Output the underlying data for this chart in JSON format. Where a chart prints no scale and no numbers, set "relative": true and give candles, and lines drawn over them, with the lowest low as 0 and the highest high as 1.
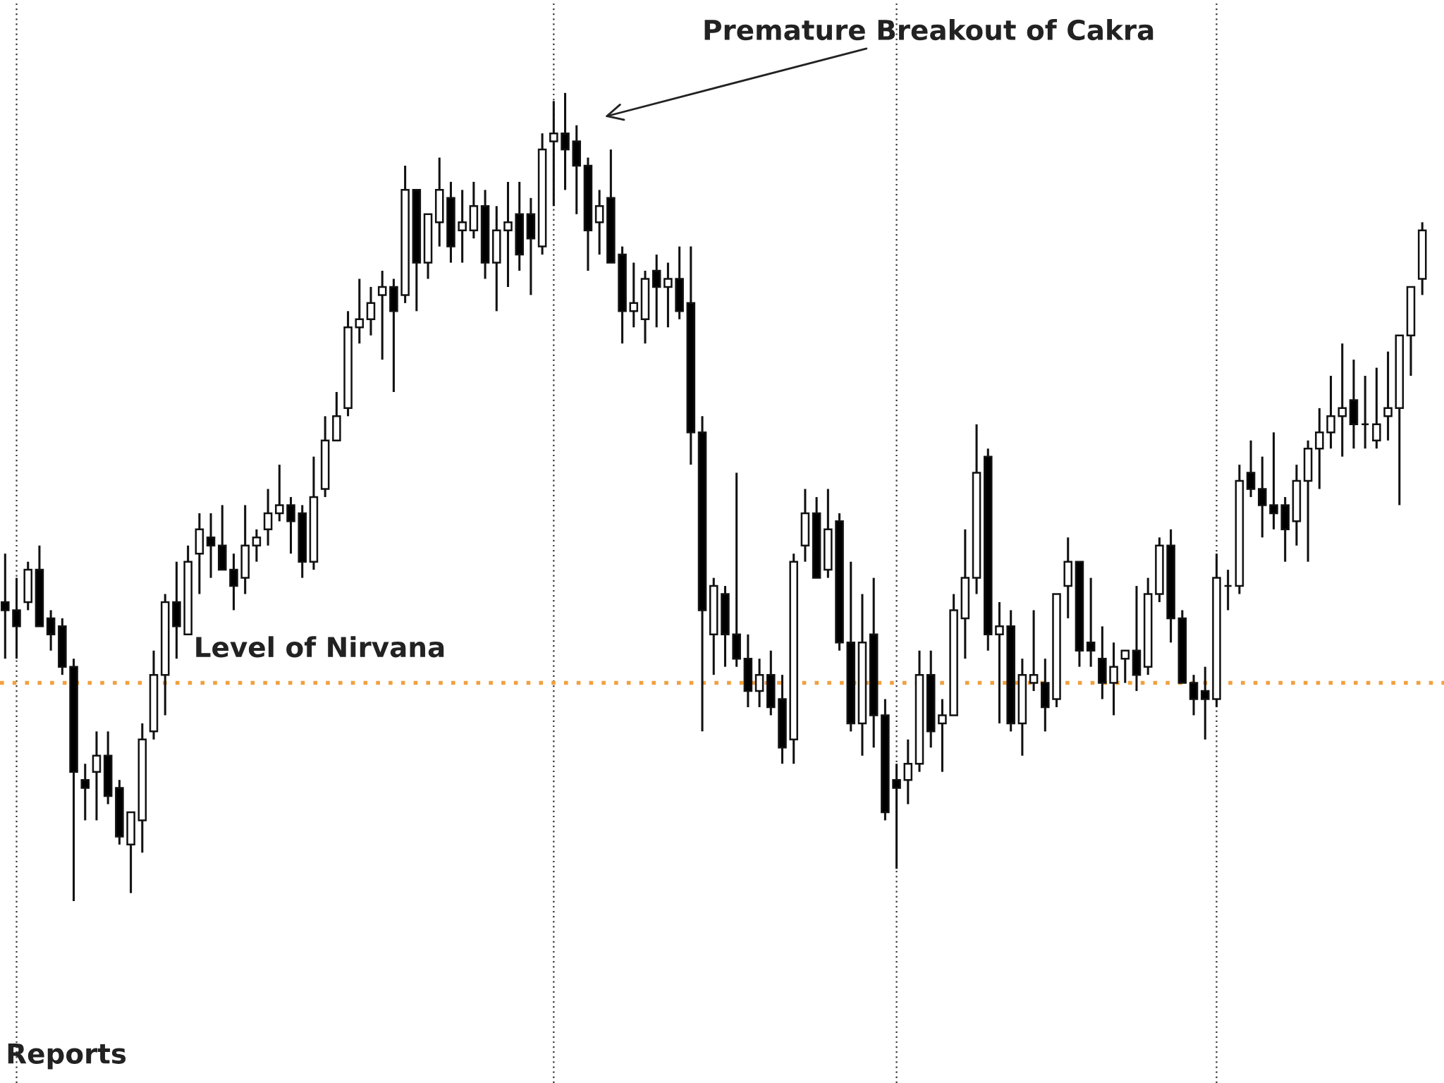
{
  "chart_data": {
    "type": "candlestick",
    "relative": true,
    "categories": [
      null,
      null,
      null,
      null,
      null,
      null,
      null,
      null,
      null,
      null,
      null,
      null,
      null,
      null,
      null,
      null,
      null,
      null,
      null,
      null,
      null,
      null,
      null,
      null,
      null,
      null,
      null,
      null,
      null,
      null,
      null,
      null,
      null,
      null,
      null,
      null,
      null,
      null,
      null,
      null,
      null,
      null,
      null,
      null,
      null,
      null,
      null,
      null,
      null,
      null,
      null,
      null,
      null,
      null,
      null,
      null,
      null,
      null,
      null,
      null,
      null,
      null,
      null,
      null,
      null,
      null,
      null,
      null,
      null,
      null,
      null,
      null,
      null,
      null,
      null,
      null,
      null,
      null,
      null,
      null,
      null,
      null,
      null,
      null,
      null,
      null,
      null,
      null,
      null,
      null,
      null,
      null,
      null,
      null,
      null,
      null,
      null,
      null,
      null,
      null,
      null,
      null,
      null,
      null,
      null,
      null,
      null,
      null,
      null,
      null,
      null,
      null,
      null,
      null,
      null,
      null,
      null,
      null,
      null,
      null,
      null,
      null,
      null,
      null,
      null
    ],
    "ohlc": [
      [
        0.37,
        0.43,
        0.3,
        0.36
      ],
      [
        0.36,
        0.4,
        0.3,
        0.34
      ],
      [
        0.37,
        0.42,
        0.36,
        0.41
      ],
      [
        0.41,
        0.44,
        0.34,
        0.34
      ],
      [
        0.35,
        0.36,
        0.31,
        0.33
      ],
      [
        0.34,
        0.35,
        0.28,
        0.29
      ],
      [
        0.29,
        0.3,
        0.0,
        0.16
      ],
      [
        0.15,
        0.17,
        0.1,
        0.14
      ],
      [
        0.16,
        0.21,
        0.1,
        0.18
      ],
      [
        0.18,
        0.21,
        0.12,
        0.13
      ],
      [
        0.14,
        0.15,
        0.07,
        0.08
      ],
      [
        0.07,
        0.11,
        0.01,
        0.11
      ],
      [
        0.1,
        0.22,
        0.06,
        0.2
      ],
      [
        0.21,
        0.31,
        0.2,
        0.28
      ],
      [
        0.28,
        0.38,
        0.23,
        0.37
      ],
      [
        0.37,
        0.42,
        0.3,
        0.34
      ],
      [
        0.33,
        0.44,
        0.33,
        0.42
      ],
      [
        0.43,
        0.48,
        0.38,
        0.46
      ],
      [
        0.45,
        0.48,
        0.4,
        0.44
      ],
      [
        0.44,
        0.49,
        0.41,
        0.41
      ],
      [
        0.41,
        0.43,
        0.36,
        0.39
      ],
      [
        0.4,
        0.49,
        0.38,
        0.44
      ],
      [
        0.44,
        0.46,
        0.42,
        0.45
      ],
      [
        0.46,
        0.51,
        0.44,
        0.48
      ],
      [
        0.48,
        0.54,
        0.47,
        0.49
      ],
      [
        0.49,
        0.5,
        0.43,
        0.47
      ],
      [
        0.48,
        0.49,
        0.4,
        0.42
      ],
      [
        0.42,
        0.55,
        0.41,
        0.5
      ],
      [
        0.51,
        0.6,
        0.5,
        0.57
      ],
      [
        0.57,
        0.63,
        0.57,
        0.6
      ],
      [
        0.61,
        0.73,
        0.6,
        0.71
      ],
      [
        0.71,
        0.77,
        0.69,
        0.72
      ],
      [
        0.72,
        0.76,
        0.7,
        0.74
      ],
      [
        0.75,
        0.78,
        0.67,
        0.76
      ],
      [
        0.76,
        0.77,
        0.63,
        0.73
      ],
      [
        0.75,
        0.91,
        0.74,
        0.88
      ],
      [
        0.88,
        0.88,
        0.73,
        0.79
      ],
      [
        0.79,
        0.85,
        0.77,
        0.85
      ],
      [
        0.84,
        0.92,
        0.81,
        0.88
      ],
      [
        0.87,
        0.89,
        0.79,
        0.81
      ],
      [
        0.83,
        0.88,
        0.79,
        0.84
      ],
      [
        0.83,
        0.89,
        0.82,
        0.86
      ],
      [
        0.86,
        0.88,
        0.77,
        0.79
      ],
      [
        0.79,
        0.86,
        0.73,
        0.83
      ],
      [
        0.83,
        0.89,
        0.76,
        0.84
      ],
      [
        0.85,
        0.89,
        0.78,
        0.8
      ],
      [
        0.85,
        0.87,
        0.75,
        0.82
      ],
      [
        0.81,
        0.95,
        0.8,
        0.93
      ],
      [
        0.94,
        0.99,
        0.86,
        0.95
      ],
      [
        0.95,
        1.0,
        0.88,
        0.93
      ],
      [
        0.94,
        0.96,
        0.85,
        0.91
      ],
      [
        0.91,
        0.92,
        0.78,
        0.83
      ],
      [
        0.84,
        0.88,
        0.8,
        0.86
      ],
      [
        0.87,
        0.93,
        0.79,
        0.79
      ],
      [
        0.8,
        0.81,
        0.69,
        0.73
      ],
      [
        0.73,
        0.79,
        0.71,
        0.74
      ],
      [
        0.72,
        0.78,
        0.69,
        0.77
      ],
      [
        0.78,
        0.8,
        0.71,
        0.76
      ],
      [
        0.76,
        0.79,
        0.71,
        0.77
      ],
      [
        0.77,
        0.81,
        0.72,
        0.73
      ],
      [
        0.74,
        0.81,
        0.54,
        0.58
      ],
      [
        0.58,
        0.6,
        0.21,
        0.36
      ],
      [
        0.33,
        0.4,
        0.28,
        0.39
      ],
      [
        0.38,
        0.39,
        0.29,
        0.33
      ],
      [
        0.33,
        0.53,
        0.29,
        0.3
      ],
      [
        0.3,
        0.33,
        0.24,
        0.26
      ],
      [
        0.26,
        0.3,
        0.24,
        0.28
      ],
      [
        0.28,
        0.31,
        0.23,
        0.24
      ],
      [
        0.25,
        0.28,
        0.17,
        0.19
      ],
      [
        0.2,
        0.43,
        0.17,
        0.42
      ],
      [
        0.44,
        0.51,
        0.42,
        0.48
      ],
      [
        0.48,
        0.5,
        0.4,
        0.4
      ],
      [
        0.41,
        0.51,
        0.4,
        0.46
      ],
      [
        0.47,
        0.48,
        0.31,
        0.32
      ],
      [
        0.32,
        0.42,
        0.21,
        0.22
      ],
      [
        0.22,
        0.38,
        0.18,
        0.32
      ],
      [
        0.33,
        0.4,
        0.19,
        0.23
      ],
      [
        0.23,
        0.25,
        0.1,
        0.11
      ],
      [
        0.15,
        0.17,
        0.04,
        0.14
      ],
      [
        0.15,
        0.2,
        0.12,
        0.17
      ],
      [
        0.17,
        0.31,
        0.16,
        0.28
      ],
      [
        0.28,
        0.31,
        0.19,
        0.21
      ],
      [
        0.22,
        0.25,
        0.16,
        0.23
      ],
      [
        0.23,
        0.38,
        0.23,
        0.36
      ],
      [
        0.35,
        0.46,
        0.3,
        0.4
      ],
      [
        0.4,
        0.59,
        0.38,
        0.53
      ],
      [
        0.55,
        0.56,
        0.31,
        0.33
      ],
      [
        0.33,
        0.37,
        0.22,
        0.34
      ],
      [
        0.34,
        0.36,
        0.21,
        0.22
      ],
      [
        0.22,
        0.3,
        0.18,
        0.28
      ],
      [
        0.27,
        0.36,
        0.26,
        0.28
      ],
      [
        0.27,
        0.3,
        0.21,
        0.24
      ],
      [
        0.25,
        0.38,
        0.24,
        0.38
      ],
      [
        0.39,
        0.45,
        0.35,
        0.42
      ],
      [
        0.42,
        0.42,
        0.29,
        0.31
      ],
      [
        0.32,
        0.4,
        0.29,
        0.31
      ],
      [
        0.3,
        0.34,
        0.25,
        0.27
      ],
      [
        0.27,
        0.32,
        0.23,
        0.29
      ],
      [
        0.3,
        0.31,
        0.27,
        0.31
      ],
      [
        0.31,
        0.39,
        0.26,
        0.28
      ],
      [
        0.29,
        0.4,
        0.28,
        0.38
      ],
      [
        0.38,
        0.45,
        0.37,
        0.44
      ],
      [
        0.44,
        0.46,
        0.32,
        0.35
      ],
      [
        0.35,
        0.36,
        0.27,
        0.27
      ],
      [
        0.27,
        0.28,
        0.23,
        0.25
      ],
      [
        0.26,
        0.29,
        0.2,
        0.25
      ],
      [
        0.25,
        0.43,
        0.24,
        0.4
      ],
      [
        0.39,
        0.41,
        0.36,
        0.39
      ],
      [
        0.39,
        0.54,
        0.38,
        0.52
      ],
      [
        0.53,
        0.57,
        0.5,
        0.51
      ],
      [
        0.51,
        0.55,
        0.45,
        0.49
      ],
      [
        0.49,
        0.58,
        0.46,
        0.48
      ],
      [
        0.49,
        0.5,
        0.42,
        0.46
      ],
      [
        0.47,
        0.54,
        0.44,
        0.52
      ],
      [
        0.52,
        0.57,
        0.42,
        0.56
      ],
      [
        0.56,
        0.61,
        0.51,
        0.58
      ],
      [
        0.58,
        0.65,
        0.56,
        0.6
      ],
      [
        0.6,
        0.69,
        0.55,
        0.61
      ],
      [
        0.62,
        0.67,
        0.56,
        0.59
      ],
      [
        0.59,
        0.65,
        0.56,
        0.59
      ],
      [
        0.57,
        0.66,
        0.56,
        0.59
      ],
      [
        0.6,
        0.68,
        0.57,
        0.61
      ],
      [
        0.61,
        0.7,
        0.49,
        0.7
      ],
      [
        0.7,
        0.76,
        0.65,
        0.76
      ],
      [
        0.77,
        0.84,
        0.75,
        0.83
      ]
    ],
    "ref_lines": [
      {
        "axis": "y",
        "value": 0.27,
        "label": "Level of Nirvana",
        "color": "#f0a040",
        "line_style": "dotted"
      }
    ],
    "annotations": [
      "Premature Breakout of Cakra",
      "Reports"
    ]
  }
}
